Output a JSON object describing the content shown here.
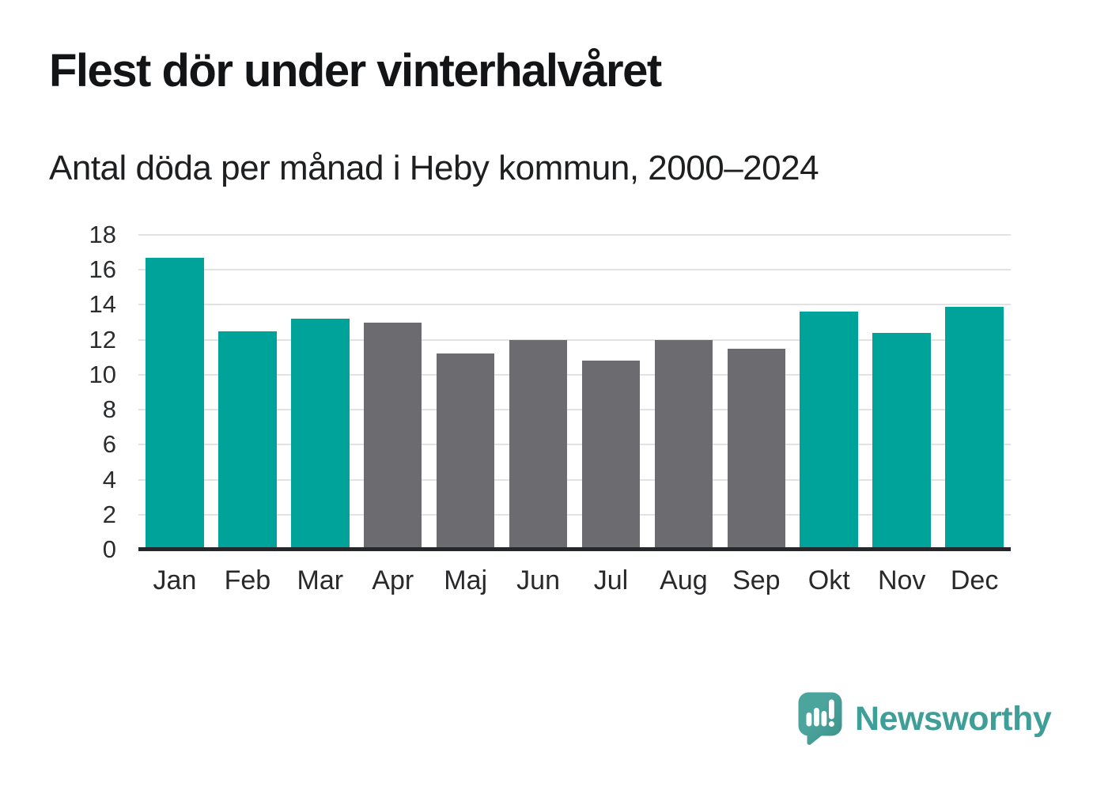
{
  "header": {
    "title": "Flest dör under vinterhalvåret",
    "subtitle": "Antal döda per månad i Heby kommun, 2000–2024"
  },
  "chart_data": {
    "type": "bar",
    "title": "Flest dör under vinterhalvåret",
    "subtitle": "Antal döda per månad i Heby kommun, 2000–2024",
    "categories": [
      "Jan",
      "Feb",
      "Mar",
      "Apr",
      "Maj",
      "Jun",
      "Jul",
      "Aug",
      "Sep",
      "Okt",
      "Nov",
      "Dec"
    ],
    "values": [
      16.7,
      12.5,
      13.2,
      13.0,
      11.2,
      12.0,
      10.8,
      12.0,
      11.5,
      13.6,
      12.4,
      13.9
    ],
    "bar_seasons": [
      "winter",
      "winter",
      "winter",
      "summer",
      "summer",
      "summer",
      "summer",
      "summer",
      "summer",
      "winter",
      "winter",
      "winter"
    ],
    "palette": {
      "winter": "#00a39a",
      "summer": "#6b6b70"
    },
    "xlabel": "",
    "ylabel": "",
    "ylim": [
      0,
      18
    ],
    "yticks": [
      0,
      2,
      4,
      6,
      8,
      10,
      12,
      14,
      16,
      18
    ],
    "grid": "horizontal",
    "legend": "none"
  },
  "axis_style": {
    "gridline_color": "#e2e2e2",
    "baseline_color": "#26272a",
    "tick_text_color": "#2a2c2e"
  },
  "footer": {
    "brand": "Newsworthy",
    "logo_icon": "newsworthy-speech-bubble-chart-icon",
    "brand_color": "#3f9e97",
    "bubble_color": "#48a39b",
    "bubble_shade_color": "#3d948c"
  }
}
